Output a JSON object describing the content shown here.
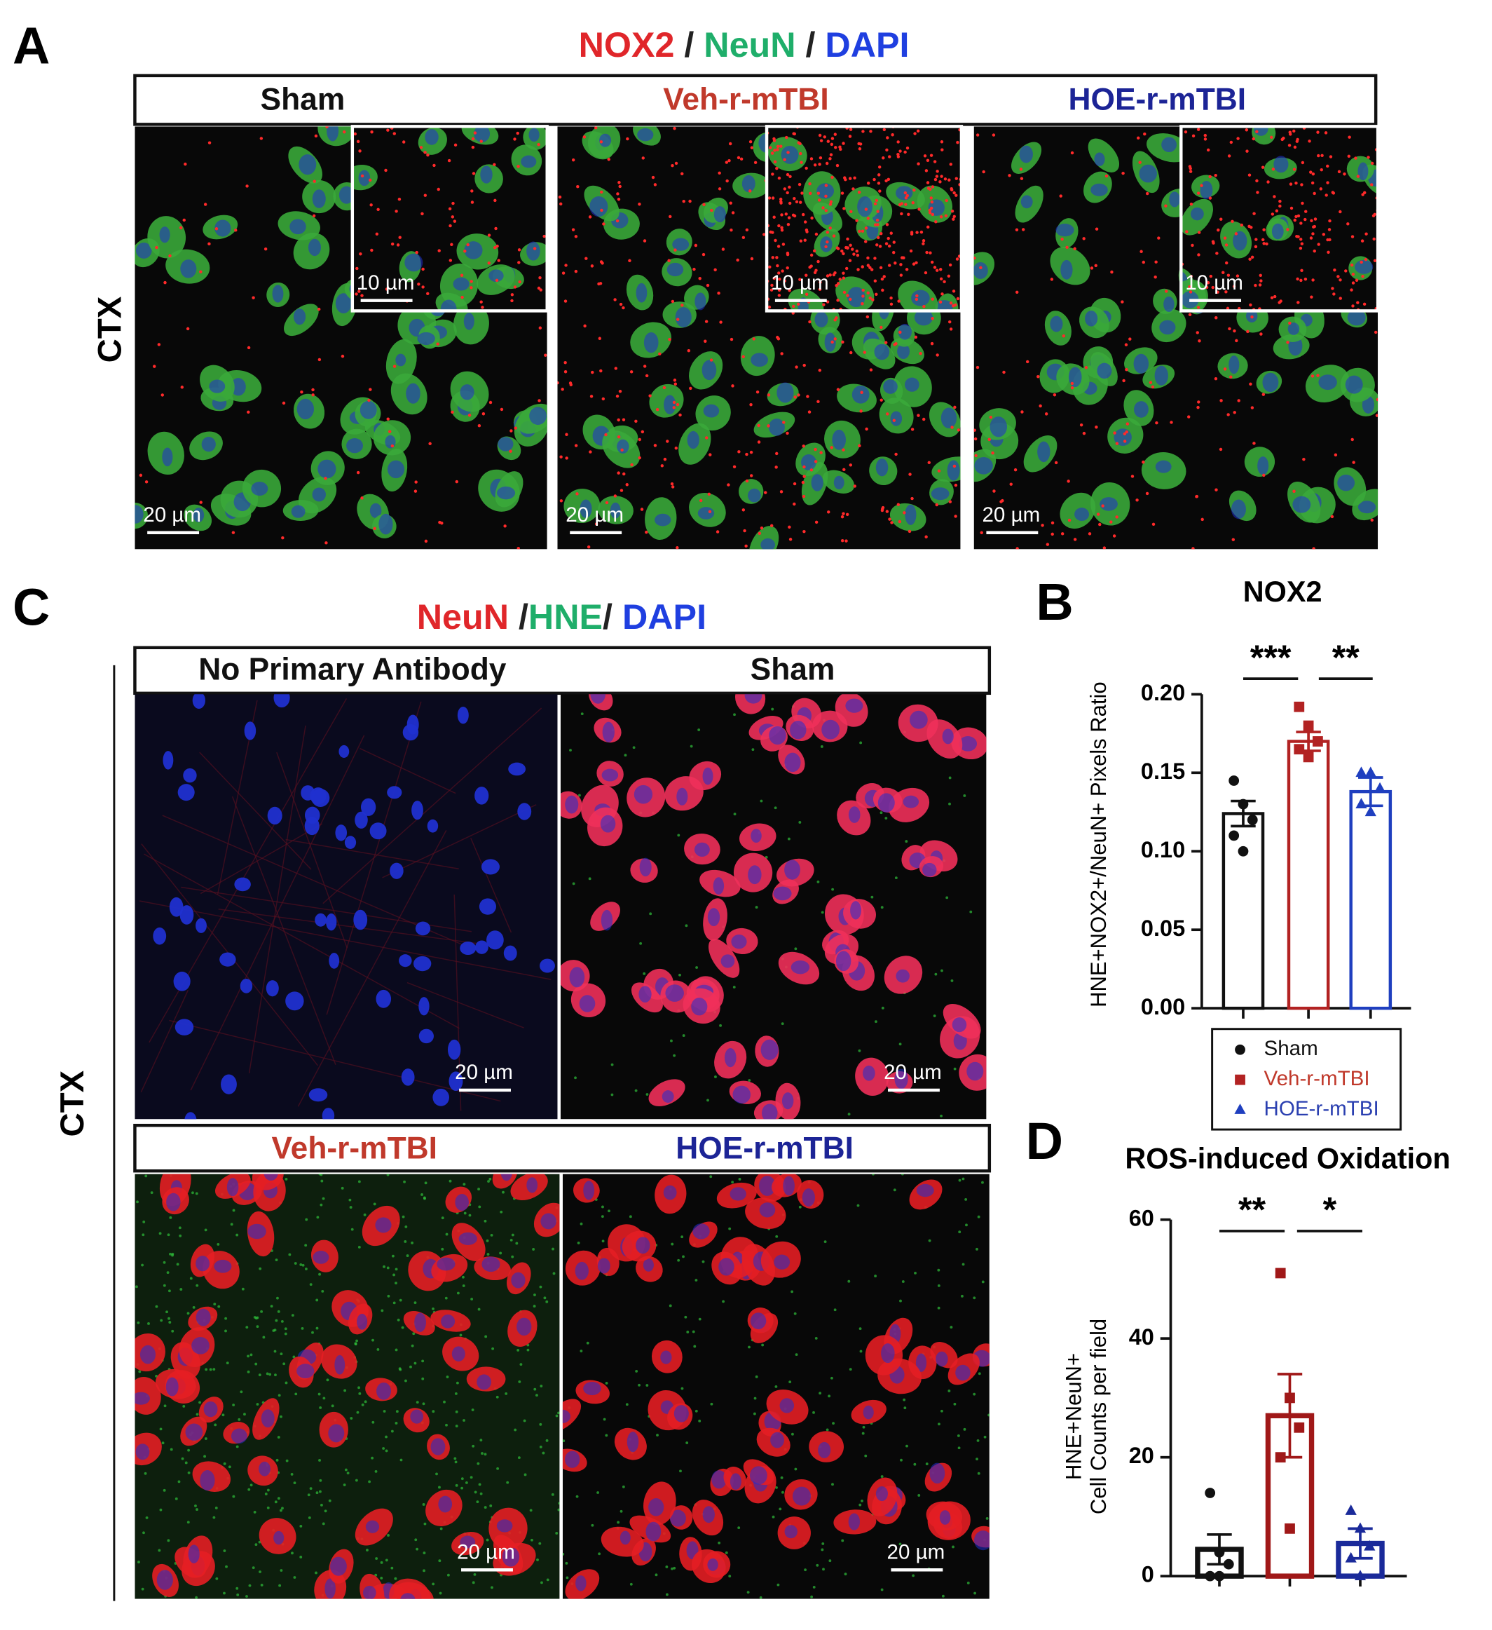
{
  "panel_a": {
    "letter": "A",
    "title": [
      "NOX2",
      " / ",
      "NeuN",
      " / ",
      "DAPI"
    ],
    "title_colors": [
      "#e0262a",
      "#222222",
      "#1fae6a",
      "#222222",
      "#1f3fe0"
    ],
    "groups": [
      "Sham",
      "Veh-r-mTBI",
      "HOE-r-mTBI"
    ],
    "group_colors": [
      "#111111",
      "#c0392b",
      "#1c2496"
    ],
    "region": "CTX",
    "scale_main": "20 µm",
    "scale_inset": "10 µm"
  },
  "panel_c": {
    "letter": "C",
    "title": [
      "NeuN",
      " /",
      "HNE",
      "/ ",
      "DAPI"
    ],
    "title_colors": [
      "#e0262a",
      "#222222",
      "#1fae6a",
      "#222222",
      "#1f3fe0"
    ],
    "groups": [
      "No Primary Antibody",
      "Sham",
      "Veh-r-mTBI",
      "HOE-r-mTBI"
    ],
    "group_colors": [
      "#111111",
      "#111111",
      "#c0392b",
      "#1c2496"
    ],
    "region": "CTX",
    "scale": "20 µm"
  },
  "chart_data": [
    {
      "type": "bar",
      "letter": "B",
      "title": "NOX2",
      "ylabel": [
        "HNE+NOX2+/NeuN+ Pixels Ratio"
      ],
      "categories": [
        "Sham",
        "Veh-r-mTBI",
        "HOE-r-mTBI"
      ],
      "colors": [
        "#111111",
        "#b22222",
        "#1f3fbf"
      ],
      "legend_text_colors": [
        "#111111",
        "#c0392b",
        "#2a3fb0"
      ],
      "markers": [
        "circle",
        "square",
        "triangle"
      ],
      "values": [
        0.124,
        0.17,
        0.138
      ],
      "errors": [
        0.008,
        0.006,
        0.009
      ],
      "points": [
        [
          0.145,
          0.13,
          0.12,
          0.11,
          0.1
        ],
        [
          0.192,
          0.18,
          0.17,
          0.165,
          0.16
        ],
        [
          0.15,
          0.15,
          0.14,
          0.13,
          0.125
        ]
      ],
      "ylim": [
        0,
        0.2
      ],
      "yticks": [
        {
          "value": 0,
          "label": "0.00"
        },
        {
          "value": 0.05,
          "label": "0.05"
        },
        {
          "value": 0.1,
          "label": "0.10"
        },
        {
          "value": 0.15,
          "label": "0.15"
        },
        {
          "value": 0.2,
          "label": "0.20"
        }
      ],
      "annotations": [
        "***",
        "**"
      ],
      "legend": true
    },
    {
      "type": "bar",
      "letter": "D",
      "title": "ROS-induced Oxidation",
      "ylabel": [
        "HNE+NeuN+",
        "Cell Counts per field"
      ],
      "colors": [
        "#111111",
        "#a01818",
        "#1a2a9a"
      ],
      "markers": [
        "circle",
        "square",
        "triangle"
      ],
      "values": [
        4.5,
        27,
        5.5
      ],
      "errors": [
        2.5,
        7,
        2.5
      ],
      "points": [
        [
          14,
          4,
          2,
          0,
          0
        ],
        [
          51,
          30,
          25,
          20,
          8
        ],
        [
          11,
          8,
          5,
          3,
          0
        ]
      ],
      "ylim": [
        0,
        60
      ],
      "yticks": [
        0,
        20,
        40,
        60
      ],
      "annotations": [
        "**",
        "*"
      ],
      "legend": false
    }
  ]
}
